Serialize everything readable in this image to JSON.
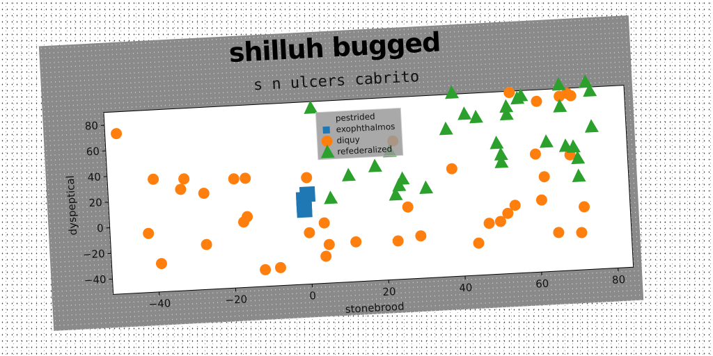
{
  "chart_data": {
    "type": "scatter",
    "title": "shilluh bugged",
    "subtitle": "s n ulcers cabrito",
    "xlabel": "stonebrood",
    "ylabel": "dyspeptical",
    "xlim": [
      -52,
      84
    ],
    "ylim": [
      -52,
      90
    ],
    "xticks": [
      -40,
      -20,
      0,
      20,
      40,
      60,
      80
    ],
    "yticks": [
      -40,
      -20,
      0,
      20,
      40,
      60,
      80
    ],
    "legend_position": "top-center",
    "series": [
      {
        "name": "pestrided",
        "marker": "none",
        "color": "#7f7f7f",
        "points": []
      },
      {
        "name": "exophthalmos",
        "marker": "square",
        "color": "#1f77b4",
        "points": [
          [
            -1,
            14
          ],
          [
            -1,
            10
          ],
          [
            -1,
            6
          ],
          [
            0,
            18
          ]
        ]
      },
      {
        "name": "diquy",
        "marker": "circle",
        "color": "#ff7f0e",
        "points": [
          [
            -49,
            73
          ],
          [
            -42,
            -6
          ],
          [
            -40,
            36
          ],
          [
            -39,
            -30
          ],
          [
            -33,
            27
          ],
          [
            -32,
            35
          ],
          [
            -27,
            23
          ],
          [
            -27,
            -17
          ],
          [
            -19,
            33
          ],
          [
            -16,
            33
          ],
          [
            -17,
            -1
          ],
          [
            -16,
            3
          ],
          [
            -12,
            -39
          ],
          [
            -8,
            -38
          ],
          [
            0,
            31
          ],
          [
            0,
            -12
          ],
          [
            4,
            -5
          ],
          [
            4,
            -31
          ],
          [
            5,
            -22
          ],
          [
            12,
            -21
          ],
          [
            23,
            -22
          ],
          [
            23,
            56
          ],
          [
            26,
            4
          ],
          [
            29,
            -19
          ],
          [
            38,
            32
          ],
          [
            44,
            -27
          ],
          [
            47,
            -12
          ],
          [
            50,
            -11
          ],
          [
            52,
            -5
          ],
          [
            54,
            89
          ],
          [
            54,
            1
          ],
          [
            60,
            40
          ],
          [
            61,
            81
          ],
          [
            61,
            4
          ],
          [
            62,
            22
          ],
          [
            65,
            -22
          ],
          [
            67,
            84
          ],
          [
            69,
            86
          ],
          [
            69,
            38
          ],
          [
            70,
            84
          ],
          [
            71,
            -23
          ],
          [
            72,
            -3
          ]
        ]
      },
      {
        "name": "refederalized",
        "marker": "triangle",
        "color": "#2ca02c",
        "points": [
          [
            2,
            85
          ],
          [
            6,
            14
          ],
          [
            11,
            31
          ],
          [
            18,
            37
          ],
          [
            22,
            48
          ],
          [
            23,
            14
          ],
          [
            24,
            21
          ],
          [
            25,
            26
          ],
          [
            31,
            18
          ],
          [
            37,
            63
          ],
          [
            39,
            91
          ],
          [
            42,
            74
          ],
          [
            45,
            71
          ],
          [
            50,
            50
          ],
          [
            51,
            41
          ],
          [
            51,
            35
          ],
          [
            53,
            72
          ],
          [
            53,
            78
          ],
          [
            56,
            84
          ],
          [
            57,
            86
          ],
          [
            63,
            49
          ],
          [
            67,
            93
          ],
          [
            67,
            76
          ],
          [
            68,
            45
          ],
          [
            70,
            44
          ],
          [
            71,
            35
          ],
          [
            71,
            21
          ],
          [
            74,
            94
          ],
          [
            75,
            87
          ],
          [
            75,
            59
          ]
        ]
      }
    ]
  }
}
